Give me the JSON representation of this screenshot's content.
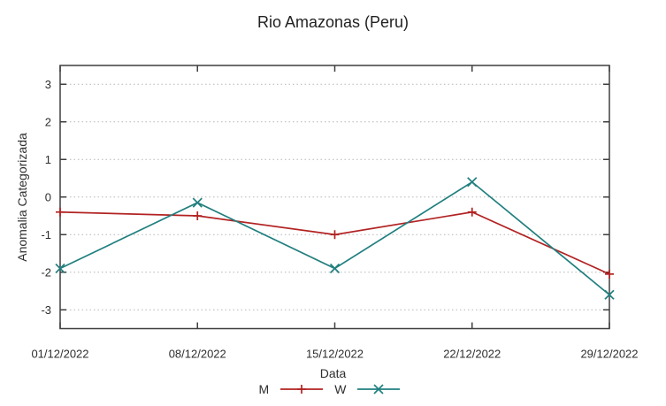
{
  "page": {
    "background": "#ffffff"
  },
  "chart_data": {
    "type": "line",
    "title": "Rio Amazonas (Peru)",
    "xlabel": "Data",
    "ylabel": "Anomalia Categorizada",
    "categories": [
      "01/12/2022",
      "08/12/2022",
      "15/12/2022",
      "22/12/2022",
      "29/12/2022"
    ],
    "y_ticks": [
      -3,
      -2,
      -1,
      0,
      1,
      2,
      3
    ],
    "ylim": [
      -3.5,
      3.5
    ],
    "grid": "horizontal-dotted",
    "legend_position": "bottom-center",
    "series": [
      {
        "name": "M",
        "color": "#b22222",
        "marker": "plus",
        "values": [
          -0.4,
          -0.5,
          -1.0,
          -0.4,
          -2.05
        ]
      },
      {
        "name": "W",
        "color": "#217f7f",
        "marker": "cross",
        "values": [
          -1.9,
          -0.15,
          -1.9,
          0.4,
          -2.6
        ]
      }
    ],
    "colors": {
      "border": "#3f3f3f",
      "gridline": "#b5b5b5",
      "text": "#2e2e2e"
    }
  }
}
